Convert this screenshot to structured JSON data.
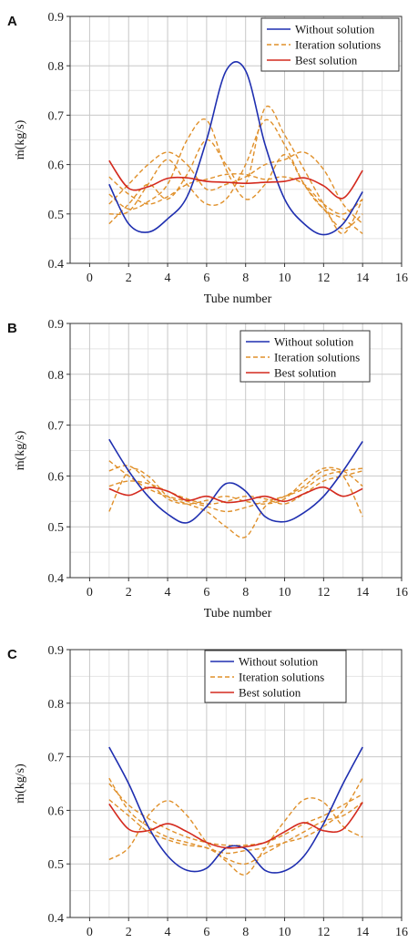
{
  "colors": {
    "without": "#1f2fb0",
    "iteration": "#e0902a",
    "best": "#d42a1e"
  },
  "chart_data": [
    {
      "panel": "A",
      "type": "line",
      "xlabel": "Tube number",
      "ylabel": "ṁ(kg/s)",
      "xlim": [
        -1,
        16
      ],
      "ylim": [
        0.4,
        0.9
      ],
      "xticks": [
        0,
        2,
        4,
        6,
        8,
        10,
        12,
        14,
        16
      ],
      "yticks": [
        0.4,
        0.5,
        0.6,
        0.7,
        0.8,
        0.9
      ],
      "grid": true,
      "legend_position": "top-right",
      "x": [
        1,
        2,
        3,
        4,
        5,
        6,
        7,
        8,
        9,
        10,
        11,
        12,
        13,
        14
      ],
      "series": [
        {
          "name": "Without solution",
          "style": "solid",
          "color_key": "without",
          "values": [
            0.56,
            0.48,
            0.463,
            0.49,
            0.535,
            0.65,
            0.79,
            0.79,
            0.64,
            0.53,
            0.48,
            0.458,
            0.48,
            0.545
          ]
        },
        {
          "name": "Iteration solutions",
          "style": "dashed",
          "color_key": "iteration",
          "values": [
            0.575,
            0.54,
            0.52,
            0.535,
            0.56,
            0.57,
            0.58,
            0.58,
            0.57,
            0.575,
            0.56,
            0.52,
            0.5,
            0.53
          ]
        },
        {
          "name": "",
          "style": "dashed",
          "color_key": "iteration",
          "values": [
            0.5,
            0.505,
            0.56,
            0.61,
            0.56,
            0.52,
            0.53,
            0.6,
            0.69,
            0.64,
            0.56,
            0.51,
            0.49,
            0.46
          ]
        },
        {
          "name": "",
          "style": "dashed",
          "color_key": "iteration",
          "values": [
            0.52,
            0.56,
            0.6,
            0.625,
            0.6,
            0.55,
            0.56,
            0.575,
            0.6,
            0.61,
            0.625,
            0.59,
            0.52,
            0.48
          ]
        },
        {
          "name": "",
          "style": "dashed",
          "color_key": "iteration",
          "values": [
            0.54,
            0.51,
            0.525,
            0.56,
            0.65,
            0.69,
            0.59,
            0.53,
            0.56,
            0.62,
            0.56,
            0.51,
            0.47,
            0.5
          ]
        },
        {
          "name": "",
          "style": "dashed",
          "color_key": "iteration",
          "values": [
            0.48,
            0.52,
            0.56,
            0.53,
            0.58,
            0.65,
            0.6,
            0.56,
            0.715,
            0.66,
            0.59,
            0.52,
            0.46,
            0.53
          ]
        },
        {
          "name": "Best solution",
          "style": "solid",
          "color_key": "best",
          "values": [
            0.608,
            0.552,
            0.555,
            0.572,
            0.573,
            0.566,
            0.564,
            0.562,
            0.564,
            0.566,
            0.573,
            0.557,
            0.532,
            0.588
          ]
        }
      ]
    },
    {
      "panel": "B",
      "type": "line",
      "xlabel": "Tube number",
      "ylabel": "ṁ(kg/s)",
      "xlim": [
        -1,
        16
      ],
      "ylim": [
        0.4,
        0.9
      ],
      "xticks": [
        0,
        2,
        4,
        6,
        8,
        10,
        12,
        14,
        16
      ],
      "yticks": [
        0.4,
        0.5,
        0.6,
        0.7,
        0.8,
        0.9
      ],
      "grid": true,
      "legend_position": "top-right",
      "x": [
        1,
        2,
        3,
        4,
        5,
        6,
        7,
        8,
        9,
        10,
        11,
        12,
        13,
        14
      ],
      "series": [
        {
          "name": "Without solution",
          "style": "solid",
          "color_key": "without",
          "values": [
            0.672,
            0.61,
            0.56,
            0.525,
            0.508,
            0.54,
            0.585,
            0.57,
            0.52,
            0.51,
            0.528,
            0.56,
            0.61,
            0.668
          ]
        },
        {
          "name": "Iteration solutions",
          "style": "dashed",
          "color_key": "iteration",
          "values": [
            0.63,
            0.6,
            0.575,
            0.56,
            0.55,
            0.54,
            0.53,
            0.538,
            0.55,
            0.56,
            0.575,
            0.6,
            0.61,
            0.615
          ]
        },
        {
          "name": "",
          "style": "dashed",
          "color_key": "iteration",
          "values": [
            0.53,
            0.61,
            0.6,
            0.56,
            0.545,
            0.53,
            0.5,
            0.48,
            0.54,
            0.56,
            0.58,
            0.61,
            0.6,
            0.52
          ]
        },
        {
          "name": "",
          "style": "dashed",
          "color_key": "iteration",
          "values": [
            0.61,
            0.62,
            0.59,
            0.555,
            0.545,
            0.552,
            0.56,
            0.55,
            0.545,
            0.555,
            0.59,
            0.615,
            0.61,
            0.58
          ]
        },
        {
          "name": "",
          "style": "dashed",
          "color_key": "iteration",
          "values": [
            0.58,
            0.59,
            0.585,
            0.57,
            0.555,
            0.545,
            0.55,
            0.56,
            0.555,
            0.545,
            0.565,
            0.59,
            0.6,
            0.61
          ]
        },
        {
          "name": "Best solution",
          "style": "solid",
          "color_key": "best",
          "values": [
            0.575,
            0.562,
            0.577,
            0.57,
            0.552,
            0.56,
            0.548,
            0.552,
            0.56,
            0.55,
            0.565,
            0.578,
            0.56,
            0.575
          ]
        }
      ]
    },
    {
      "panel": "C",
      "type": "line",
      "xlabel": "Tube number",
      "ylabel": "ṁ(kg/s)",
      "xlim": [
        -1,
        16
      ],
      "ylim": [
        0.4,
        0.9
      ],
      "xticks": [
        0,
        2,
        4,
        6,
        8,
        10,
        12,
        14,
        16
      ],
      "yticks": [
        0.4,
        0.5,
        0.6,
        0.7,
        0.8,
        0.9
      ],
      "grid": true,
      "legend_position": "top-right",
      "x": [
        1,
        2,
        3,
        4,
        5,
        6,
        7,
        8,
        9,
        10,
        11,
        12,
        13,
        14
      ],
      "series": [
        {
          "name": "Without solution",
          "style": "solid",
          "color_key": "without",
          "values": [
            0.718,
            0.65,
            0.57,
            0.515,
            0.488,
            0.492,
            0.53,
            0.528,
            0.488,
            0.487,
            0.515,
            0.575,
            0.65,
            0.718
          ]
        },
        {
          "name": "Iteration solutions",
          "style": "dashed",
          "color_key": "iteration",
          "values": [
            0.66,
            0.6,
            0.57,
            0.55,
            0.54,
            0.53,
            0.52,
            0.525,
            0.53,
            0.54,
            0.55,
            0.57,
            0.6,
            0.66
          ]
        },
        {
          "name": "",
          "style": "dashed",
          "color_key": "iteration",
          "values": [
            0.508,
            0.53,
            0.59,
            0.618,
            0.59,
            0.54,
            0.505,
            0.48,
            0.53,
            0.58,
            0.62,
            0.615,
            0.57,
            0.55
          ]
        },
        {
          "name": "",
          "style": "dashed",
          "color_key": "iteration",
          "values": [
            0.65,
            0.61,
            0.585,
            0.565,
            0.55,
            0.54,
            0.535,
            0.535,
            0.54,
            0.555,
            0.575,
            0.59,
            0.61,
            0.63
          ]
        },
        {
          "name": "",
          "style": "dashed",
          "color_key": "iteration",
          "values": [
            0.62,
            0.59,
            0.56,
            0.545,
            0.535,
            0.53,
            0.51,
            0.5,
            0.52,
            0.54,
            0.56,
            0.58,
            0.59,
            0.615
          ]
        },
        {
          "name": "Best solution",
          "style": "solid",
          "color_key": "best",
          "values": [
            0.612,
            0.565,
            0.562,
            0.575,
            0.56,
            0.54,
            0.53,
            0.532,
            0.54,
            0.56,
            0.577,
            0.562,
            0.565,
            0.615
          ]
        }
      ]
    }
  ]
}
